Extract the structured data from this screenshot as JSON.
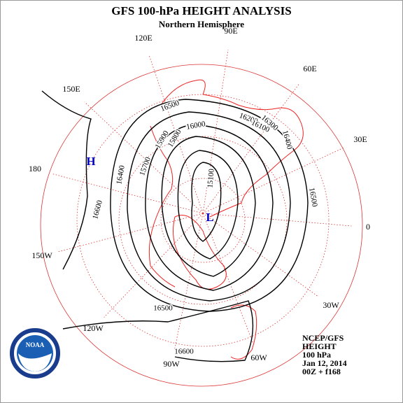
{
  "header": {
    "title": "GFS 100-hPa HEIGHT ANALYSIS",
    "subtitle": "Northern Hemisphere"
  },
  "longitudes": [
    "90E",
    "120E",
    "60E",
    "150E",
    "30E",
    "180",
    "0",
    "150W",
    "30W",
    "120W",
    "60W",
    "90W"
  ],
  "contour_labels": [
    "16500",
    "16000",
    "16200",
    "16100",
    "16300",
    "15900",
    "15800",
    "15700",
    "16400",
    "15100",
    "16600",
    "16400",
    "16500",
    "16500",
    "16600"
  ],
  "pressure_centers": [
    "H",
    "L"
  ],
  "info": [
    "NCEP/GFS",
    "HEIGHT",
    "100 hPa",
    "Jan 12, 2014",
    "00Z + f168"
  ],
  "logo": {
    "text": "NOAA"
  }
}
